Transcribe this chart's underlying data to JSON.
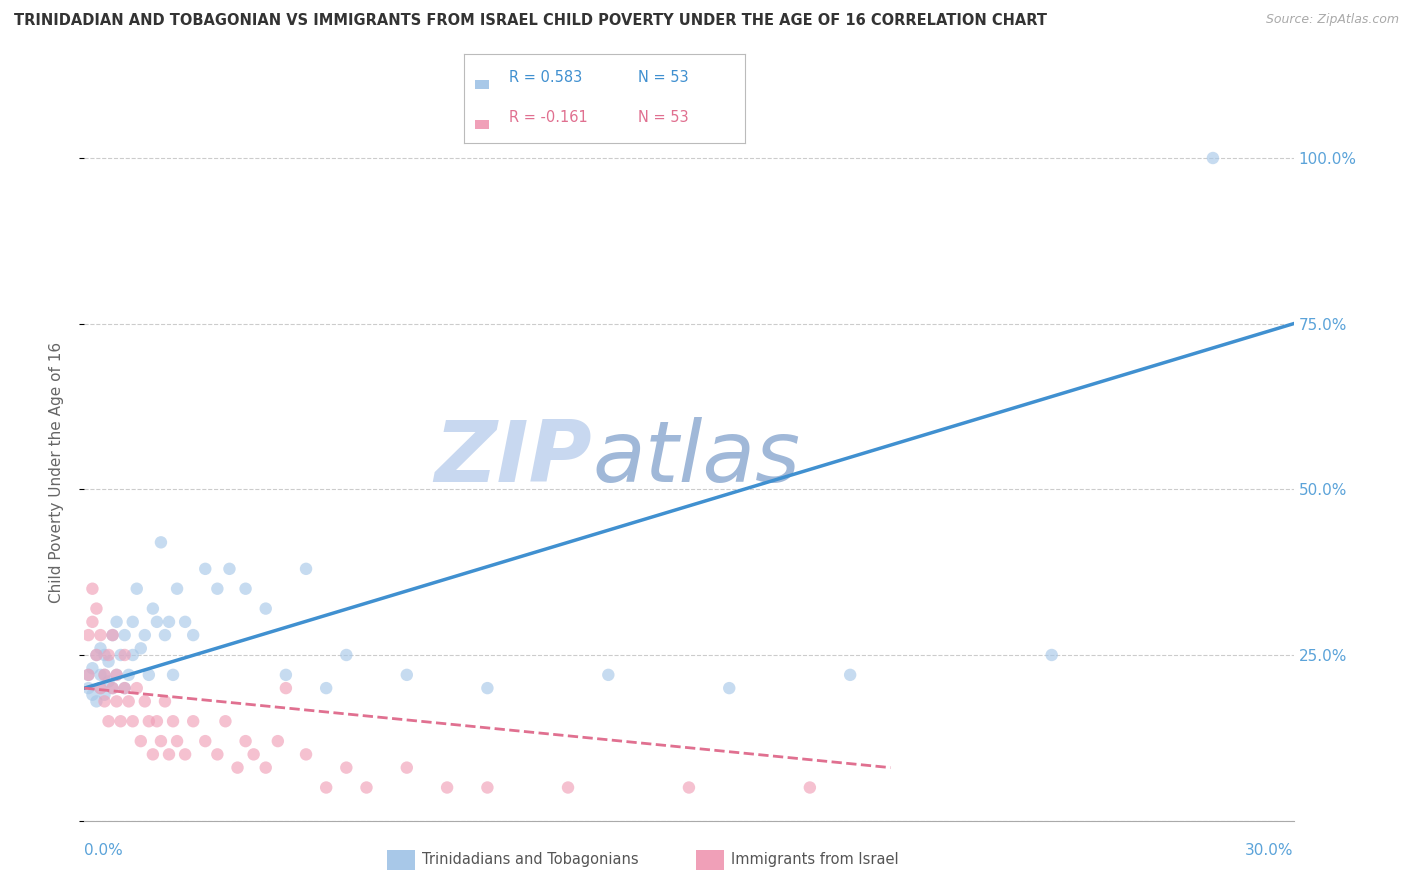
{
  "title": "TRINIDADIAN AND TOBAGONIAN VS IMMIGRANTS FROM ISRAEL CHILD POVERTY UNDER THE AGE OF 16 CORRELATION CHART",
  "source": "Source: ZipAtlas.com",
  "ylabel": "Child Poverty Under the Age of 16",
  "yticks": [
    0.0,
    0.25,
    0.5,
    0.75,
    1.0
  ],
  "ytick_labels": [
    "",
    "25.0%",
    "50.0%",
    "75.0%",
    "100.0%"
  ],
  "xlim": [
    0.0,
    0.3
  ],
  "ylim": [
    0.0,
    1.05
  ],
  "legend_r1": "R = 0.583",
  "legend_n1": "N = 53",
  "legend_r2": "R = -0.161",
  "legend_n2": "N = 53",
  "series1_label": "Trinidadians and Tobagonians",
  "series2_label": "Immigrants from Israel",
  "color1": "#A8C8E8",
  "color2": "#F0A0B8",
  "line_color1": "#4090D0",
  "line_color2": "#E07090",
  "watermark_zip": "ZIP",
  "watermark_atlas": "atlas",
  "watermark_color_zip": "#C8D8F0",
  "watermark_color_atlas": "#A0B8D8",
  "background_color": "#FFFFFF",
  "series1_x": [
    0.001,
    0.001,
    0.002,
    0.002,
    0.003,
    0.003,
    0.004,
    0.004,
    0.004,
    0.005,
    0.005,
    0.005,
    0.006,
    0.006,
    0.007,
    0.007,
    0.008,
    0.008,
    0.009,
    0.01,
    0.01,
    0.011,
    0.012,
    0.012,
    0.013,
    0.014,
    0.015,
    0.016,
    0.017,
    0.018,
    0.019,
    0.02,
    0.021,
    0.022,
    0.023,
    0.025,
    0.027,
    0.03,
    0.033,
    0.036,
    0.04,
    0.045,
    0.05,
    0.055,
    0.06,
    0.065,
    0.08,
    0.1,
    0.13,
    0.16,
    0.19,
    0.24,
    0.28
  ],
  "series1_y": [
    0.2,
    0.22,
    0.19,
    0.23,
    0.18,
    0.25,
    0.2,
    0.22,
    0.26,
    0.19,
    0.22,
    0.25,
    0.21,
    0.24,
    0.2,
    0.28,
    0.22,
    0.3,
    0.25,
    0.2,
    0.28,
    0.22,
    0.3,
    0.25,
    0.35,
    0.26,
    0.28,
    0.22,
    0.32,
    0.3,
    0.42,
    0.28,
    0.3,
    0.22,
    0.35,
    0.3,
    0.28,
    0.38,
    0.35,
    0.38,
    0.35,
    0.32,
    0.22,
    0.38,
    0.2,
    0.25,
    0.22,
    0.2,
    0.22,
    0.2,
    0.22,
    0.25,
    1.0
  ],
  "series2_x": [
    0.001,
    0.001,
    0.002,
    0.002,
    0.003,
    0.003,
    0.004,
    0.004,
    0.005,
    0.005,
    0.006,
    0.006,
    0.007,
    0.007,
    0.008,
    0.008,
    0.009,
    0.01,
    0.01,
    0.011,
    0.012,
    0.013,
    0.014,
    0.015,
    0.016,
    0.017,
    0.018,
    0.019,
    0.02,
    0.021,
    0.022,
    0.023,
    0.025,
    0.027,
    0.03,
    0.033,
    0.035,
    0.038,
    0.04,
    0.042,
    0.045,
    0.048,
    0.05,
    0.055,
    0.06,
    0.065,
    0.07,
    0.08,
    0.09,
    0.1,
    0.12,
    0.15,
    0.18
  ],
  "series2_y": [
    0.22,
    0.28,
    0.3,
    0.35,
    0.25,
    0.32,
    0.28,
    0.2,
    0.22,
    0.18,
    0.25,
    0.15,
    0.2,
    0.28,
    0.18,
    0.22,
    0.15,
    0.2,
    0.25,
    0.18,
    0.15,
    0.2,
    0.12,
    0.18,
    0.15,
    0.1,
    0.15,
    0.12,
    0.18,
    0.1,
    0.15,
    0.12,
    0.1,
    0.15,
    0.12,
    0.1,
    0.15,
    0.08,
    0.12,
    0.1,
    0.08,
    0.12,
    0.2,
    0.1,
    0.05,
    0.08,
    0.05,
    0.08,
    0.05,
    0.05,
    0.05,
    0.05,
    0.05
  ],
  "line1_x0": 0.0,
  "line1_y0": 0.2,
  "line1_x1": 0.3,
  "line1_y1": 0.75,
  "line2_x0": 0.0,
  "line2_y0": 0.2,
  "line2_x1": 0.2,
  "line2_y1": 0.08,
  "dot_size": 80,
  "dot_alpha": 0.65,
  "figsize": [
    14.06,
    8.92
  ],
  "dpi": 100
}
